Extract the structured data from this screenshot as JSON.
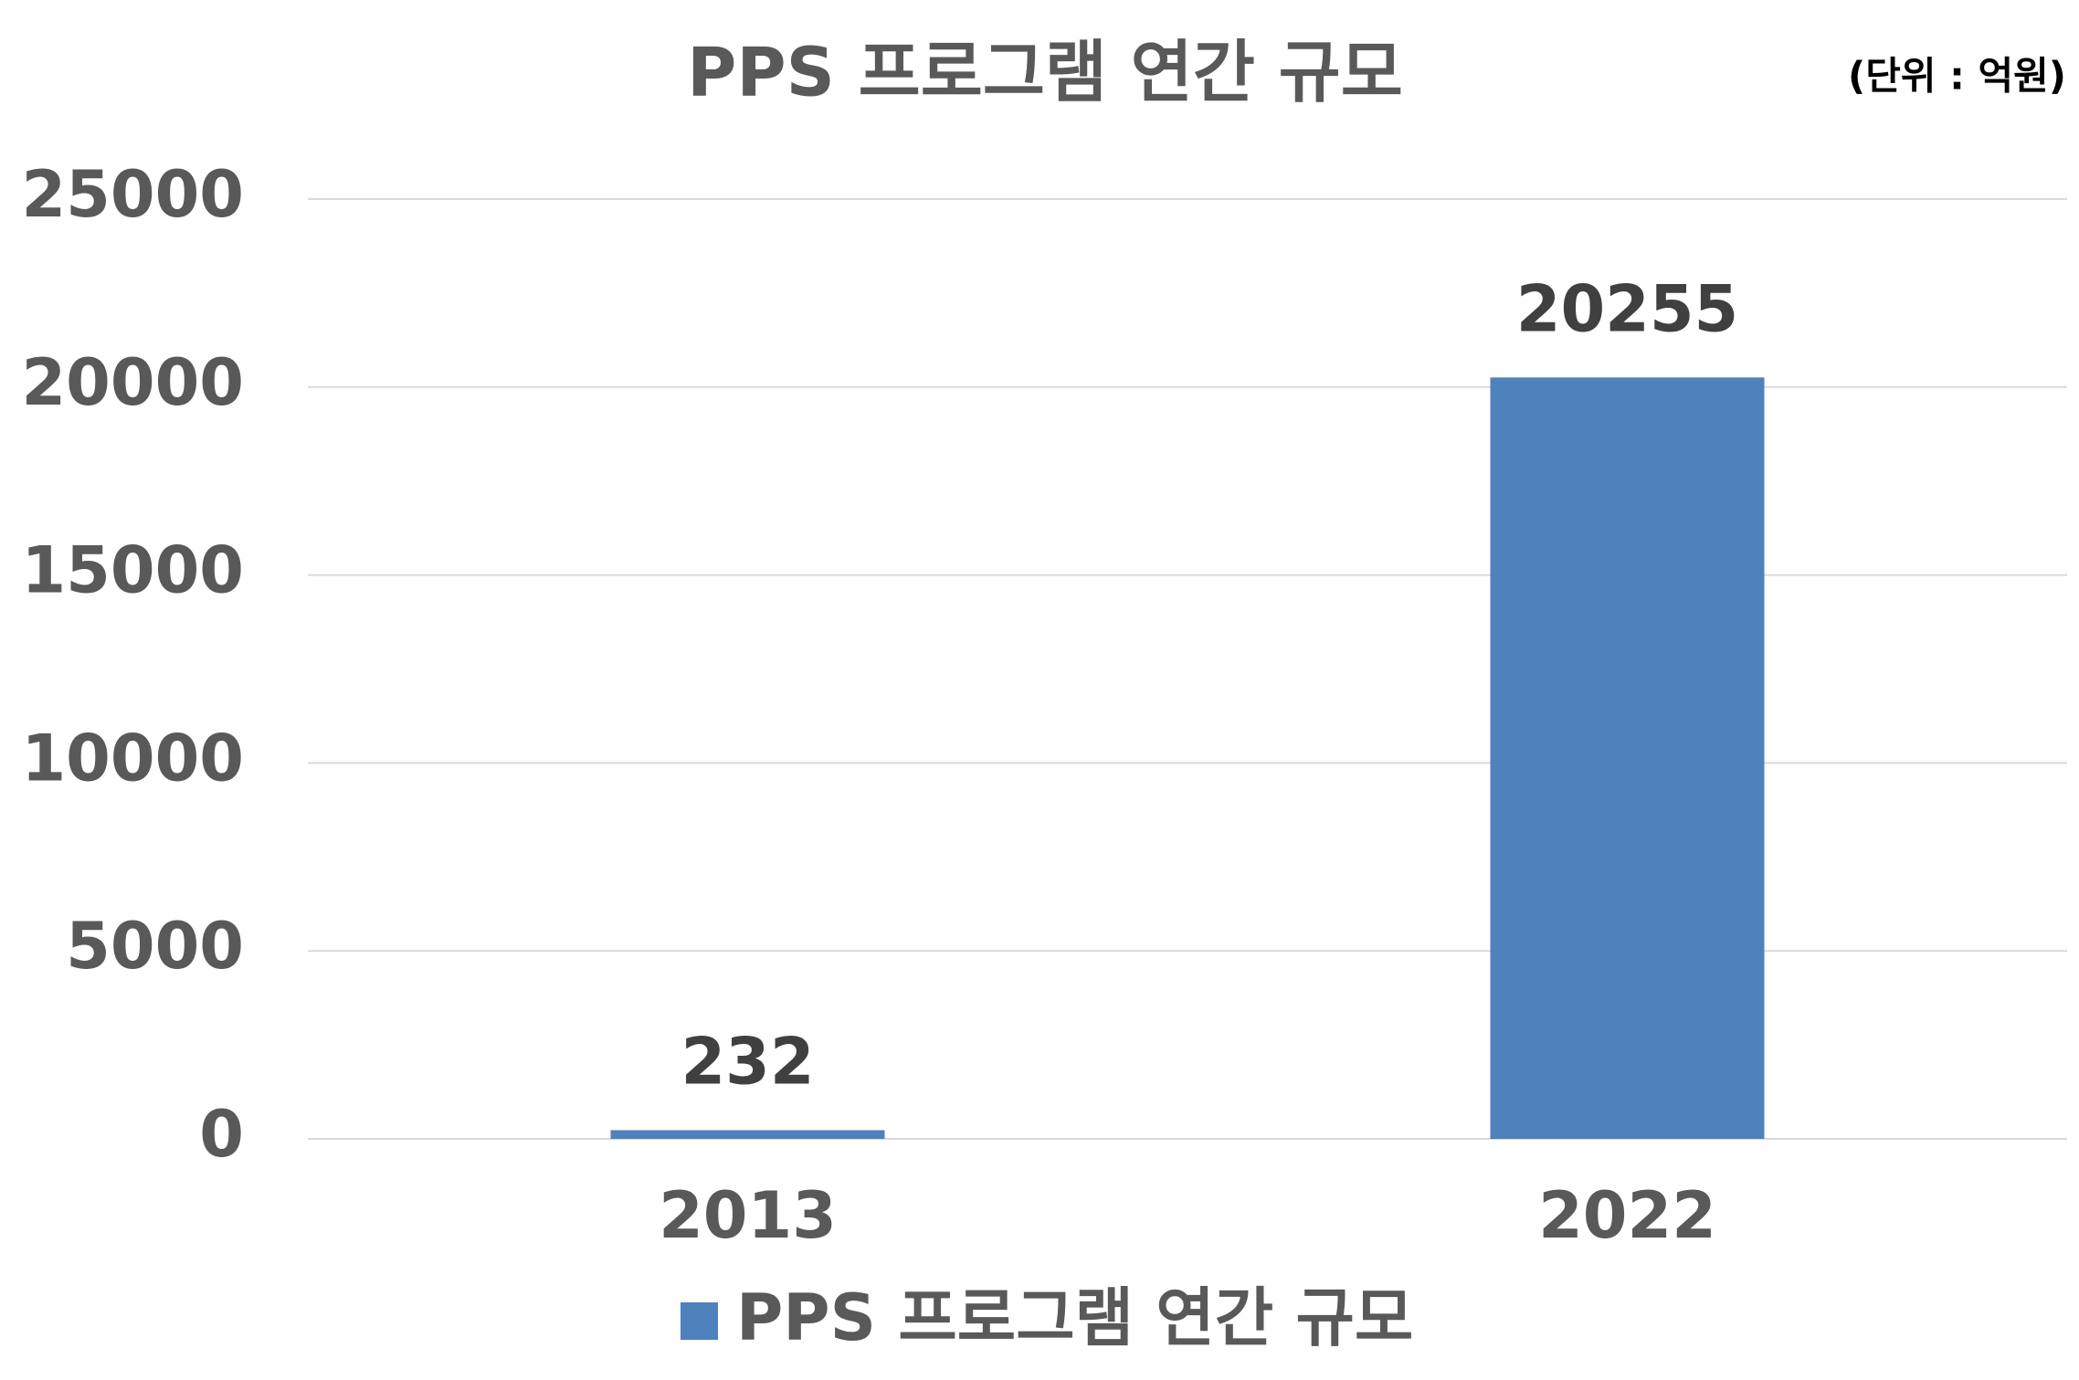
{
  "chart_data": {
    "type": "bar",
    "title": "PPS 프로그램 연간 규모",
    "subtitle": "(단위 : 억원)",
    "categories": [
      "2013",
      "2022"
    ],
    "series": [
      {
        "name": "PPS 프로그램 연간 규모",
        "color": "#4f81bd",
        "values": [
          232,
          20255
        ]
      }
    ],
    "ylim": [
      0,
      25000
    ],
    "yticks": [
      0,
      5000,
      10000,
      15000,
      20000,
      25000
    ],
    "grid": true,
    "legend": "bottom"
  }
}
